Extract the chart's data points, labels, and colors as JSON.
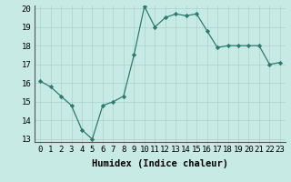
{
  "x": [
    0,
    1,
    2,
    3,
    4,
    5,
    6,
    7,
    8,
    9,
    10,
    11,
    12,
    13,
    14,
    15,
    16,
    17,
    18,
    19,
    20,
    21,
    22,
    23
  ],
  "y": [
    16.1,
    15.8,
    15.3,
    14.8,
    13.5,
    13.0,
    14.8,
    15.0,
    15.3,
    17.5,
    20.1,
    19.0,
    19.5,
    19.7,
    19.6,
    19.7,
    18.8,
    17.9,
    18.0,
    18.0,
    18.0,
    18.0,
    17.0,
    17.1
  ],
  "xlabel": "Humidex (Indice chaleur)",
  "ylim": [
    13,
    20
  ],
  "xlim": [
    -0.5,
    23.5
  ],
  "yticks": [
    13,
    14,
    15,
    16,
    17,
    18,
    19,
    20
  ],
  "xticks": [
    0,
    1,
    2,
    3,
    4,
    5,
    6,
    7,
    8,
    9,
    10,
    11,
    12,
    13,
    14,
    15,
    16,
    17,
    18,
    19,
    20,
    21,
    22,
    23
  ],
  "line_color": "#2a7d6e",
  "marker_color": "#2a7d6e",
  "bg_color": "#c8eae4",
  "grid_color": "#a8d4cc",
  "xlabel_fontsize": 7.5,
  "tick_fontsize": 6.5
}
